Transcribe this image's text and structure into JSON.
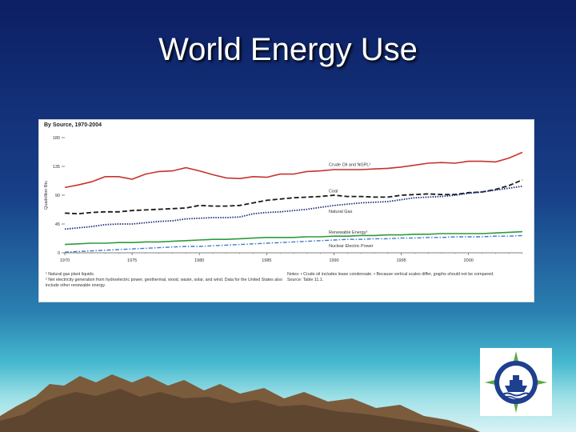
{
  "slide": {
    "title": "World Energy Use"
  },
  "chart_data": {
    "type": "line",
    "title": "By Source, 1970-2004",
    "ylabel": "Quadrillion Btu",
    "xlabel": "",
    "xlim": [
      1970,
      2004
    ],
    "ylim": [
      0,
      180
    ],
    "x_ticks": [
      1970,
      1975,
      1980,
      1985,
      1990,
      1995,
      2000
    ],
    "y_ticks": [
      0,
      45,
      90,
      135,
      180
    ],
    "grid": false,
    "legend": "inline labels at right",
    "series": [
      {
        "name": "Crude Oil and NGPL¹",
        "color": "#c8322b",
        "style": "solid",
        "x": [
          1970,
          1971,
          1972,
          1973,
          1974,
          1975,
          1976,
          1977,
          1978,
          1979,
          1980,
          1981,
          1982,
          1983,
          1984,
          1985,
          1986,
          1987,
          1988,
          1989,
          1990,
          1991,
          1992,
          1993,
          1994,
          1995,
          1996,
          1997,
          1998,
          1999,
          2000,
          2001,
          2002,
          2003,
          2004
        ],
        "values": [
          102,
          106,
          111,
          119,
          119,
          115,
          123,
          127,
          128,
          133,
          128,
          122,
          117,
          116,
          119,
          118,
          123,
          123,
          127,
          128,
          130,
          130,
          130,
          131,
          132,
          134,
          137,
          140,
          141,
          140,
          143,
          143,
          142,
          148,
          157
        ]
      },
      {
        "name": "Coal",
        "color": "#1a1a1a",
        "style": "dashed",
        "x": [
          1970,
          1971,
          1972,
          1973,
          1974,
          1975,
          1976,
          1977,
          1978,
          1979,
          1980,
          1981,
          1982,
          1983,
          1984,
          1985,
          1986,
          1987,
          1988,
          1989,
          1990,
          1991,
          1992,
          1993,
          1994,
          1995,
          1996,
          1997,
          1998,
          1999,
          2000,
          2001,
          2002,
          2003,
          2004
        ],
        "values": [
          62,
          61,
          63,
          64,
          64,
          66,
          67,
          68,
          69,
          70,
          74,
          73,
          73,
          74,
          78,
          82,
          84,
          86,
          87,
          88,
          90,
          88,
          88,
          87,
          87,
          90,
          91,
          92,
          91,
          91,
          94,
          95,
          99,
          105,
          114
        ]
      },
      {
        "name": "Natural Gas",
        "color": "#1f2d7a",
        "style": "dotted",
        "x": [
          1970,
          1971,
          1972,
          1973,
          1974,
          1975,
          1976,
          1977,
          1978,
          1979,
          1980,
          1981,
          1982,
          1983,
          1984,
          1985,
          1986,
          1987,
          1988,
          1989,
          1990,
          1991,
          1992,
          1993,
          1994,
          1995,
          1996,
          1997,
          1998,
          1999,
          2000,
          2001,
          2002,
          2003,
          2004
        ],
        "values": [
          37,
          39,
          41,
          44,
          45,
          45,
          47,
          49,
          50,
          53,
          54,
          55,
          55,
          56,
          61,
          63,
          64,
          66,
          68,
          71,
          74,
          76,
          78,
          79,
          80,
          83,
          86,
          87,
          88,
          90,
          93,
          95,
          98,
          101,
          104
        ]
      },
      {
        "name": "Renewable Energy²",
        "color": "#2e9c3a",
        "style": "solid",
        "x": [
          1970,
          1971,
          1972,
          1973,
          1974,
          1975,
          1976,
          1977,
          1978,
          1979,
          1980,
          1981,
          1982,
          1983,
          1984,
          1985,
          1986,
          1987,
          1988,
          1989,
          1990,
          1991,
          1992,
          1993,
          1994,
          1995,
          1996,
          1997,
          1998,
          1999,
          2000,
          2001,
          2002,
          2003,
          2004
        ],
        "values": [
          13,
          14,
          15,
          15,
          16,
          16,
          17,
          17,
          18,
          19,
          20,
          21,
          21,
          22,
          23,
          24,
          24,
          24,
          25,
          25,
          26,
          26,
          27,
          27,
          28,
          28,
          29,
          29,
          30,
          30,
          30,
          30,
          31,
          32,
          33
        ]
      },
      {
        "name": "Nuclear Electric Power",
        "color": "#3f78c8",
        "style": "dashdot",
        "x": [
          1970,
          1971,
          1972,
          1973,
          1974,
          1975,
          1976,
          1977,
          1978,
          1979,
          1980,
          1981,
          1982,
          1983,
          1984,
          1985,
          1986,
          1987,
          1988,
          1989,
          1990,
          1991,
          1992,
          1993,
          1994,
          1995,
          1996,
          1997,
          1998,
          1999,
          2000,
          2001,
          2002,
          2003,
          2004
        ],
        "values": [
          1,
          2,
          3,
          4,
          5,
          6,
          7,
          8,
          9,
          10,
          10,
          11,
          12,
          13,
          14,
          15,
          16,
          17,
          18,
          19,
          20,
          21,
          21,
          22,
          22,
          23,
          23,
          24,
          24,
          25,
          25,
          25,
          26,
          26,
          27
        ]
      }
    ],
    "footnotes": [
      "¹ Natural gas plant liquids.",
      "² Net electricity generation from hydroelectric power, geothermal, wood, waste, solar, and wind. Data for the United States also include other renewable energy."
    ],
    "notes": [
      "Notes: • Crude oil includes lease condensate. • Because vertical scales differ, graphs should not be compared.",
      "Source: Table 11.1."
    ]
  }
}
